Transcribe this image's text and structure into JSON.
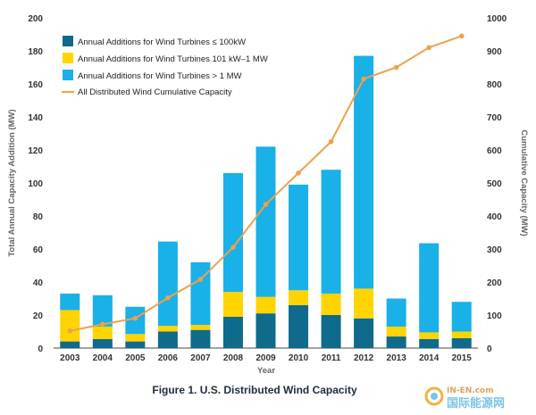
{
  "chart_data": {
    "type": "bar",
    "stacked": true,
    "caption": "Figure 1. U.S. Distributed Wind Capacity",
    "xlabel": "Year",
    "ylabel_left": "Total Annual Capacity Addition (MW)",
    "ylabel_right": "Cumulative Capacity (MW)",
    "ylim_left": [
      0,
      200
    ],
    "ylim_right": [
      0,
      1000
    ],
    "yticks_left": [
      "0",
      "20",
      "40",
      "60",
      "80",
      "100",
      "120",
      "140",
      "160",
      "180",
      "200"
    ],
    "yticks_right": [
      "0",
      "100",
      "200",
      "300",
      "400",
      "500",
      "600",
      "700",
      "800",
      "900",
      "1000"
    ],
    "categories": [
      "2003",
      "2004",
      "2005",
      "2006",
      "2007",
      "2008",
      "2009",
      "2010",
      "2011",
      "2012",
      "2013",
      "2014",
      "2015"
    ],
    "series": [
      {
        "name": "Annual Additions for Wind Turbines ≤ 100kW",
        "color": "#0f6a8b",
        "values": [
          4,
          5.5,
          4,
          10,
          11,
          19,
          21,
          26,
          20,
          18,
          7,
          5.5,
          6
        ]
      },
      {
        "name": "Annual Additions for Wind Turbines 101 kW–1 MW",
        "color": "#ffd400",
        "values": [
          19,
          7.5,
          4.5,
          3.5,
          3,
          15,
          10,
          9,
          13,
          18,
          6,
          4,
          4
        ]
      },
      {
        "name": "Annual Additions for Wind Turbines > 1 MW",
        "color": "#1ab0e8",
        "values": [
          10,
          19,
          16.5,
          51,
          38,
          72,
          91,
          64,
          75,
          141,
          17,
          54,
          18
        ]
      }
    ],
    "line_series": {
      "name": "All Distributed Wind Cumulative Capacity",
      "color": "#f0a04a",
      "axis": "right",
      "values": [
        52,
        72,
        90,
        152,
        208,
        305,
        435,
        530,
        625,
        815,
        850,
        910,
        945
      ]
    },
    "grid": false,
    "legend_position": "top-left"
  },
  "watermark": {
    "line1": "IN-EN.com",
    "line2": "国际能源网"
  }
}
